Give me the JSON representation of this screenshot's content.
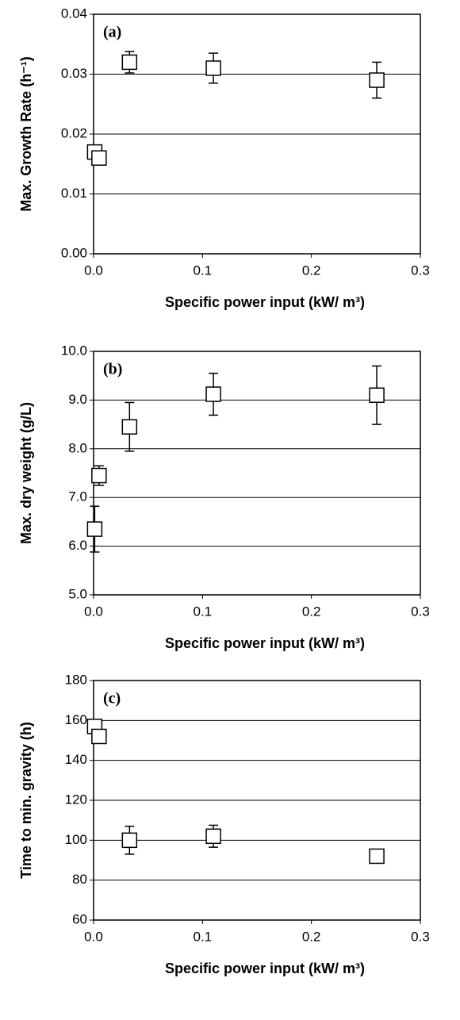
{
  "chart_data": [
    {
      "type": "scatter",
      "panel_label": "(a)",
      "ylabel": "Max. Growth Rate (h⁻¹)",
      "xlabel": "Specific power input (kW/ m³)",
      "x": [
        0.001,
        0.005,
        0.033,
        0.11,
        0.26
      ],
      "values": [
        0.017,
        0.016,
        0.032,
        0.031,
        0.029
      ],
      "errors": [
        null,
        null,
        0.0018,
        0.0025,
        0.003
      ],
      "xlim": [
        0,
        0.3
      ],
      "xticks": [
        {
          "value": 0,
          "label": "0.0"
        },
        0.1,
        0.2,
        0.3
      ],
      "ylim": [
        0,
        0.04
      ],
      "yticks": [
        {
          "value": 0,
          "label": "0.00"
        },
        {
          "value": 0.01,
          "label": "0.01"
        },
        {
          "value": 0.02,
          "label": "0.02"
        },
        {
          "value": 0.03,
          "label": "0.03"
        },
        {
          "value": 0.04,
          "label": "0.04"
        }
      ],
      "grid": true,
      "color": "#000000"
    },
    {
      "type": "scatter",
      "panel_label": "(b)",
      "ylabel": "Max. dry weight (g/L)",
      "xlabel": "Specific power input (kW/ m³)",
      "x": [
        0.001,
        0.005,
        0.033,
        0.11,
        0.26
      ],
      "values": [
        6.35,
        7.45,
        8.45,
        9.12,
        9.1
      ],
      "errors": [
        0.47,
        0.2,
        0.5,
        0.43,
        0.6
      ],
      "xlim": [
        0,
        0.3
      ],
      "xticks": [
        {
          "value": 0,
          "label": "0.0"
        },
        0.1,
        0.2,
        0.3
      ],
      "ylim": [
        5,
        10
      ],
      "yticks": [
        {
          "value": 5,
          "label": "5.0"
        },
        {
          "value": 6,
          "label": "6.0"
        },
        {
          "value": 7,
          "label": "7.0"
        },
        {
          "value": 8,
          "label": "8.0"
        },
        {
          "value": 9,
          "label": "9.0"
        },
        {
          "value": 10,
          "label": "10.0"
        }
      ],
      "grid": true,
      "color": "#000000"
    },
    {
      "type": "scatter",
      "panel_label": "(c)",
      "ylabel": "Time to min. gravity (h)",
      "xlabel": "Specific power input (kW/ m³)",
      "x": [
        0.001,
        0.005,
        0.033,
        0.11,
        0.26
      ],
      "values": [
        157,
        152,
        100,
        102,
        92
      ],
      "errors": [
        null,
        null,
        7,
        5.5,
        null
      ],
      "xlim": [
        0,
        0.3
      ],
      "xticks": [
        {
          "value": 0,
          "label": "0.0"
        },
        0.1,
        0.2,
        0.3
      ],
      "ylim": [
        60,
        180
      ],
      "yticks": [
        60,
        80,
        100,
        120,
        140,
        160,
        180
      ],
      "grid": true,
      "color": "#000000"
    }
  ]
}
